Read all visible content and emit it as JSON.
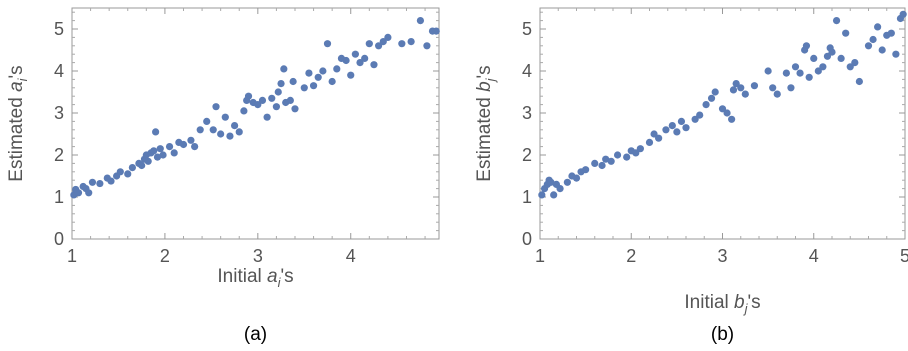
{
  "colors": {
    "points": "#5b7bb4",
    "axis": "#999999",
    "text": "#555555"
  },
  "chart_data": [
    {
      "type": "scatter",
      "caption": "(a)",
      "xlabel": {
        "prefix": "Initial ",
        "var": "a",
        "sub": "i",
        "suffix": "'s"
      },
      "ylabel": {
        "prefix": "Estimated ",
        "var": "a",
        "sub": "i",
        "suffix": "'s"
      },
      "xlim": [
        1,
        4.95
      ],
      "ylim": [
        0,
        5.5
      ],
      "xticks": [
        "1",
        "2",
        "3",
        "4"
      ],
      "yticks": [
        "0",
        "1",
        "2",
        "3",
        "4",
        "5"
      ],
      "points": [
        [
          1.02,
          1.05
        ],
        [
          1.04,
          1.18
        ],
        [
          1.07,
          1.1
        ],
        [
          1.12,
          1.25
        ],
        [
          1.15,
          1.2
        ],
        [
          1.18,
          1.1
        ],
        [
          1.22,
          1.35
        ],
        [
          1.3,
          1.32
        ],
        [
          1.38,
          1.45
        ],
        [
          1.42,
          1.38
        ],
        [
          1.48,
          1.5
        ],
        [
          1.52,
          1.6
        ],
        [
          1.6,
          1.55
        ],
        [
          1.65,
          1.7
        ],
        [
          1.72,
          1.8
        ],
        [
          1.75,
          1.75
        ],
        [
          1.78,
          1.9
        ],
        [
          1.8,
          2.0
        ],
        [
          1.82,
          1.85
        ],
        [
          1.85,
          2.05
        ],
        [
          1.88,
          2.1
        ],
        [
          1.9,
          2.55
        ],
        [
          1.92,
          1.95
        ],
        [
          1.95,
          2.15
        ],
        [
          1.98,
          2.0
        ],
        [
          2.05,
          2.2
        ],
        [
          2.1,
          2.05
        ],
        [
          2.15,
          2.3
        ],
        [
          2.2,
          2.25
        ],
        [
          2.28,
          2.35
        ],
        [
          2.32,
          2.2
        ],
        [
          2.38,
          2.6
        ],
        [
          2.45,
          2.8
        ],
        [
          2.52,
          2.6
        ],
        [
          2.55,
          3.15
        ],
        [
          2.6,
          2.5
        ],
        [
          2.65,
          2.9
        ],
        [
          2.7,
          2.45
        ],
        [
          2.75,
          2.7
        ],
        [
          2.8,
          2.55
        ],
        [
          2.85,
          3.05
        ],
        [
          2.88,
          3.3
        ],
        [
          2.9,
          3.4
        ],
        [
          2.95,
          3.25
        ],
        [
          3.0,
          3.2
        ],
        [
          3.05,
          3.3
        ],
        [
          3.1,
          2.9
        ],
        [
          3.15,
          3.35
        ],
        [
          3.2,
          3.15
        ],
        [
          3.22,
          3.5
        ],
        [
          3.25,
          3.7
        ],
        [
          3.28,
          4.05
        ],
        [
          3.3,
          3.25
        ],
        [
          3.35,
          3.3
        ],
        [
          3.38,
          3.75
        ],
        [
          3.4,
          3.1
        ],
        [
          3.5,
          3.6
        ],
        [
          3.55,
          3.95
        ],
        [
          3.6,
          3.65
        ],
        [
          3.65,
          3.85
        ],
        [
          3.7,
          4.0
        ],
        [
          3.75,
          4.65
        ],
        [
          3.8,
          3.75
        ],
        [
          3.85,
          4.05
        ],
        [
          3.9,
          4.3
        ],
        [
          3.95,
          4.25
        ],
        [
          4.0,
          3.9
        ],
        [
          4.05,
          4.4
        ],
        [
          4.1,
          4.2
        ],
        [
          4.15,
          4.3
        ],
        [
          4.2,
          4.65
        ],
        [
          4.25,
          4.15
        ],
        [
          4.3,
          4.6
        ],
        [
          4.35,
          4.7
        ],
        [
          4.4,
          4.8
        ],
        [
          4.55,
          4.65
        ],
        [
          4.65,
          4.7
        ],
        [
          4.75,
          5.2
        ],
        [
          4.82,
          4.6
        ],
        [
          4.88,
          4.95
        ],
        [
          4.92,
          4.95
        ]
      ]
    },
    {
      "type": "scatter",
      "caption": "(b)",
      "xlabel": {
        "prefix": "Initial ",
        "var": "b",
        "sub": "j",
        "suffix": "'s"
      },
      "ylabel": {
        "prefix": "Estimated ",
        "var": "b",
        "sub": "j",
        "suffix": "'s"
      },
      "xlim": [
        1,
        5
      ],
      "ylim": [
        0,
        5.5
      ],
      "xticks": [
        "1",
        "2",
        "3",
        "4",
        "5"
      ],
      "yticks": [
        "0",
        "1",
        "2",
        "3",
        "4",
        "5"
      ],
      "points": [
        [
          1.02,
          1.05
        ],
        [
          1.05,
          1.2
        ],
        [
          1.08,
          1.3
        ],
        [
          1.1,
          1.4
        ],
        [
          1.12,
          1.35
        ],
        [
          1.15,
          1.05
        ],
        [
          1.18,
          1.3
        ],
        [
          1.22,
          1.2
        ],
        [
          1.3,
          1.35
        ],
        [
          1.35,
          1.5
        ],
        [
          1.4,
          1.45
        ],
        [
          1.45,
          1.6
        ],
        [
          1.5,
          1.65
        ],
        [
          1.6,
          1.8
        ],
        [
          1.68,
          1.75
        ],
        [
          1.72,
          1.9
        ],
        [
          1.78,
          1.85
        ],
        [
          1.85,
          2.0
        ],
        [
          1.95,
          1.95
        ],
        [
          2.0,
          2.1
        ],
        [
          2.05,
          2.05
        ],
        [
          2.1,
          2.15
        ],
        [
          2.2,
          2.3
        ],
        [
          2.25,
          2.5
        ],
        [
          2.3,
          2.4
        ],
        [
          2.38,
          2.6
        ],
        [
          2.45,
          2.7
        ],
        [
          2.5,
          2.55
        ],
        [
          2.55,
          2.8
        ],
        [
          2.6,
          2.65
        ],
        [
          2.7,
          2.85
        ],
        [
          2.75,
          2.95
        ],
        [
          2.82,
          3.2
        ],
        [
          2.88,
          3.35
        ],
        [
          2.92,
          3.5
        ],
        [
          3.0,
          3.1
        ],
        [
          3.05,
          3.0
        ],
        [
          3.1,
          2.85
        ],
        [
          3.12,
          3.55
        ],
        [
          3.15,
          3.7
        ],
        [
          3.2,
          3.6
        ],
        [
          3.25,
          3.45
        ],
        [
          3.35,
          3.65
        ],
        [
          3.5,
          4.0
        ],
        [
          3.55,
          3.6
        ],
        [
          3.6,
          3.45
        ],
        [
          3.7,
          3.95
        ],
        [
          3.75,
          3.6
        ],
        [
          3.8,
          4.1
        ],
        [
          3.85,
          3.95
        ],
        [
          3.9,
          4.5
        ],
        [
          3.92,
          4.6
        ],
        [
          3.95,
          3.85
        ],
        [
          4.0,
          4.3
        ],
        [
          4.05,
          4.0
        ],
        [
          4.1,
          4.1
        ],
        [
          4.15,
          4.35
        ],
        [
          4.18,
          4.55
        ],
        [
          4.2,
          4.45
        ],
        [
          4.25,
          5.2
        ],
        [
          4.3,
          4.3
        ],
        [
          4.35,
          4.9
        ],
        [
          4.4,
          4.1
        ],
        [
          4.45,
          4.2
        ],
        [
          4.5,
          3.75
        ],
        [
          4.6,
          4.6
        ],
        [
          4.65,
          4.75
        ],
        [
          4.7,
          5.05
        ],
        [
          4.75,
          4.5
        ],
        [
          4.8,
          4.85
        ],
        [
          4.85,
          4.9
        ],
        [
          4.9,
          4.4
        ],
        [
          4.95,
          5.25
        ],
        [
          4.98,
          5.35
        ]
      ]
    }
  ]
}
